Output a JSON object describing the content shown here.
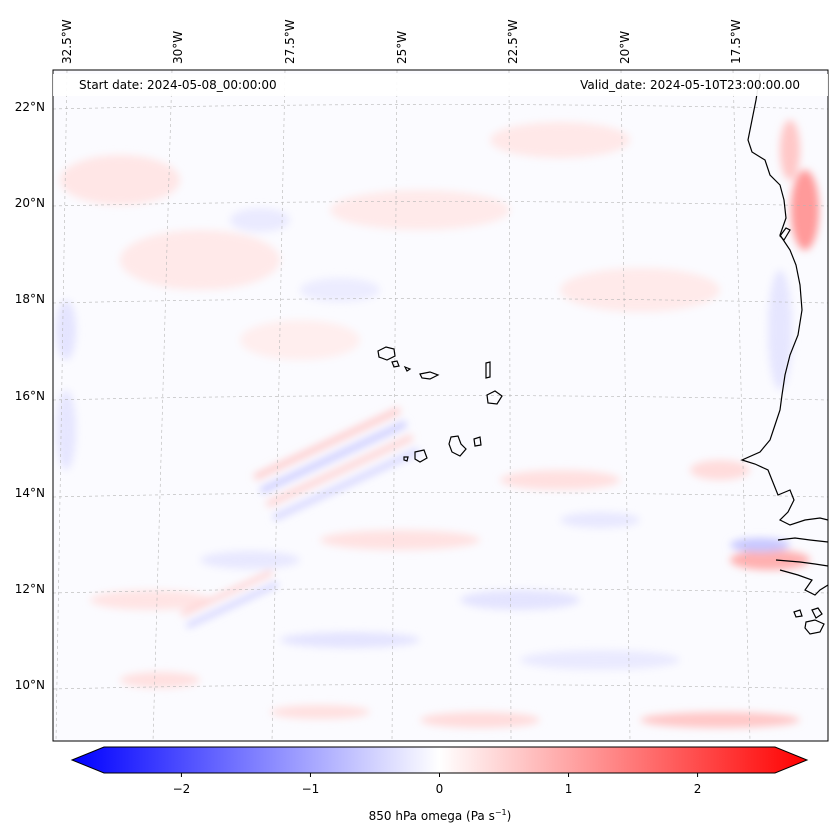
{
  "map": {
    "title_start": "Start date: 2024-05-08_00:00:00",
    "title_valid": "Valid_date: 2024-05-10T23:00:00.00",
    "longitude_labels": [
      "32.5°W",
      "30°W",
      "27.5°W",
      "25°W",
      "22.5°W",
      "20°W",
      "17.5°W"
    ],
    "latitude_labels": [
      "22°N",
      "20°N",
      "18°N",
      "16°N",
      "14°N",
      "12°N",
      "10°N"
    ],
    "field": "850 hPa omega",
    "colormap": "bwr",
    "colors": {
      "negative": "#0000ff",
      "zero": "#ffffff",
      "positive": "#ff0000",
      "coast": "#000000",
      "grid": "#b0b0b0"
    }
  },
  "colorbar": {
    "ticks": [
      "−2",
      "−1",
      "0",
      "1",
      "2"
    ],
    "tick_values": [
      -2,
      -1,
      0,
      1,
      2
    ],
    "range": [
      -2.6,
      2.6
    ],
    "label": "850 hPa omega (Pa s",
    "label_exp": "−1",
    "label_close": ")"
  }
}
